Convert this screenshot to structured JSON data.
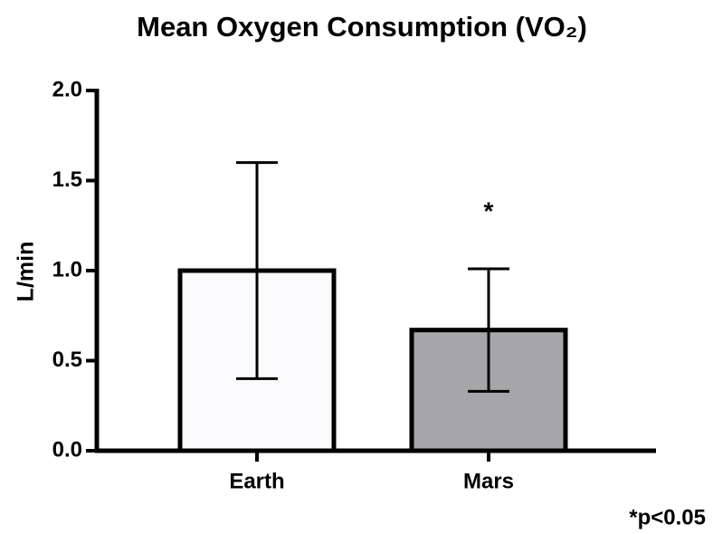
{
  "chart_data": {
    "type": "bar",
    "title": "Mean Oxygen Consumption (VO₂)",
    "ylabel": "L/min",
    "categories": [
      "Earth",
      "Mars"
    ],
    "values": [
      1.0,
      0.67
    ],
    "errors": [
      0.6,
      0.34
    ],
    "colors": [
      "#fbfafc",
      "#a6a6a8"
    ],
    "ylim": [
      0,
      2.0
    ],
    "yticks": [
      {
        "value": 0,
        "label": "0.0"
      },
      {
        "value": 0.5,
        "label": "0.5"
      },
      {
        "value": 1.0,
        "label": "1.0"
      },
      {
        "value": 1.5,
        "label": "1.5"
      },
      {
        "value": 2.0,
        "label": "2.0"
      }
    ],
    "annotations": [
      "*",
      "*p<0.05"
    ]
  }
}
